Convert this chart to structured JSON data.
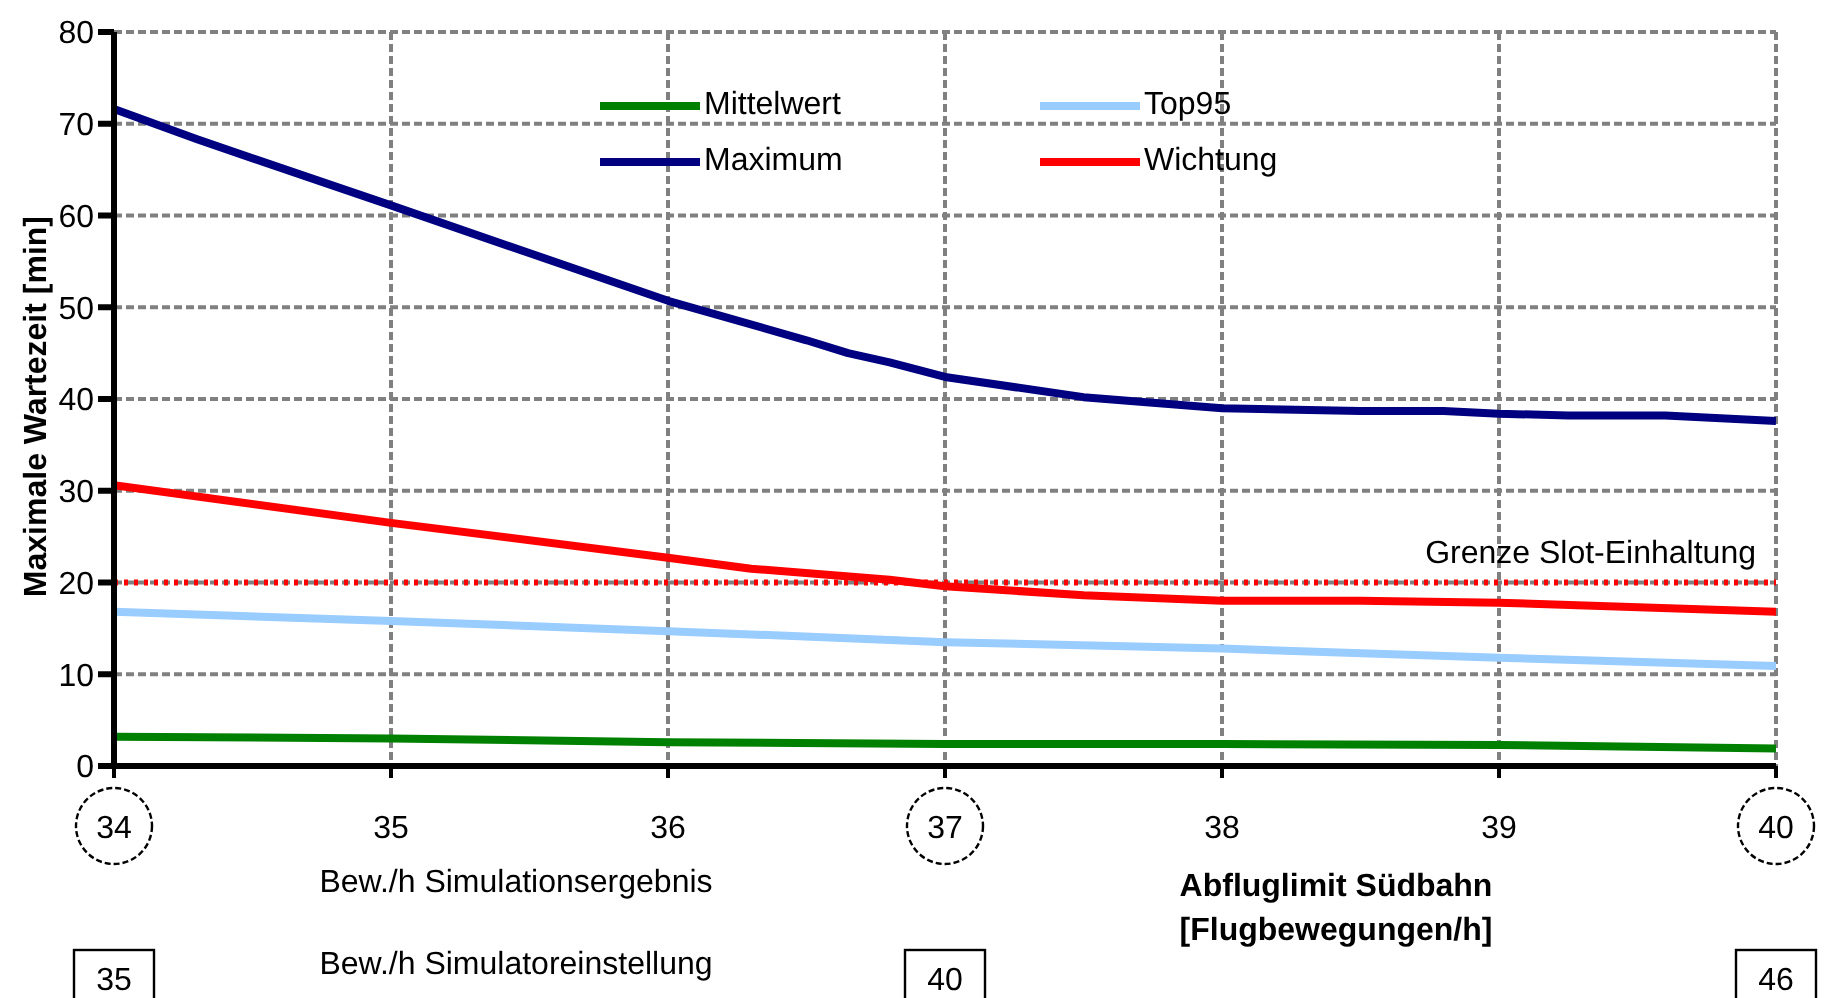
{
  "chart_data": {
    "type": "line",
    "ylabel": "Maximale Wartezeit [min]",
    "xlabel": "Abfluglimit Südbahn [Flugbewegungen/h]",
    "xlim": [
      34,
      40
    ],
    "xticks": [
      34,
      35,
      36,
      37,
      38,
      39,
      40
    ],
    "ylim": [
      0,
      80
    ],
    "yticks": [
      0,
      10,
      20,
      30,
      40,
      50,
      60,
      70,
      80
    ],
    "grid": true,
    "legend": "top",
    "line_style": "solid",
    "marker": "none",
    "series": [
      {
        "name": "Mittelwert",
        "color": "#008000",
        "x": [
          34,
          35,
          36,
          37,
          38,
          39,
          40
        ],
        "values": [
          3.2,
          3.0,
          2.6,
          2.4,
          2.4,
          2.3,
          1.9
        ]
      },
      {
        "name": "Top95",
        "color": "#99ccff",
        "x": [
          34,
          35,
          36,
          37,
          38,
          39,
          40
        ],
        "values": [
          16.8,
          15.8,
          14.7,
          13.5,
          12.8,
          11.8,
          10.9
        ]
      },
      {
        "name": "Maximum",
        "color": "#000080",
        "x": [
          34,
          34.3,
          35,
          36,
          36.5,
          36.65,
          36.8,
          37,
          37.5,
          38,
          38.5,
          38.8,
          39,
          39.25,
          39.6,
          40
        ],
        "values": [
          71.6,
          68.3,
          61.1,
          50.7,
          46.4,
          45,
          44,
          42.4,
          40.2,
          39,
          38.7,
          38.7,
          38.4,
          38.2,
          38.2,
          37.6
        ]
      },
      {
        "name": "Wichtung",
        "color": "#ff0000",
        "x": [
          34,
          35,
          36,
          36.3,
          36.8,
          37,
          37.5,
          38,
          38.5,
          39,
          40
        ],
        "values": [
          30.6,
          26.5,
          22.7,
          21.5,
          20.3,
          19.6,
          18.6,
          18,
          18,
          17.8,
          16.8
        ]
      }
    ],
    "ref_lines": [
      {
        "axis": "y",
        "value": 20,
        "label": "Grenze Slot-Einhaltung",
        "color": "#ff0000",
        "line_style": "dotted"
      }
    ],
    "annotations": [
      "Bew./h Simulationsergebnis",
      "Bew./h Simulatoreinstellung",
      "35",
      "40",
      "46"
    ]
  }
}
